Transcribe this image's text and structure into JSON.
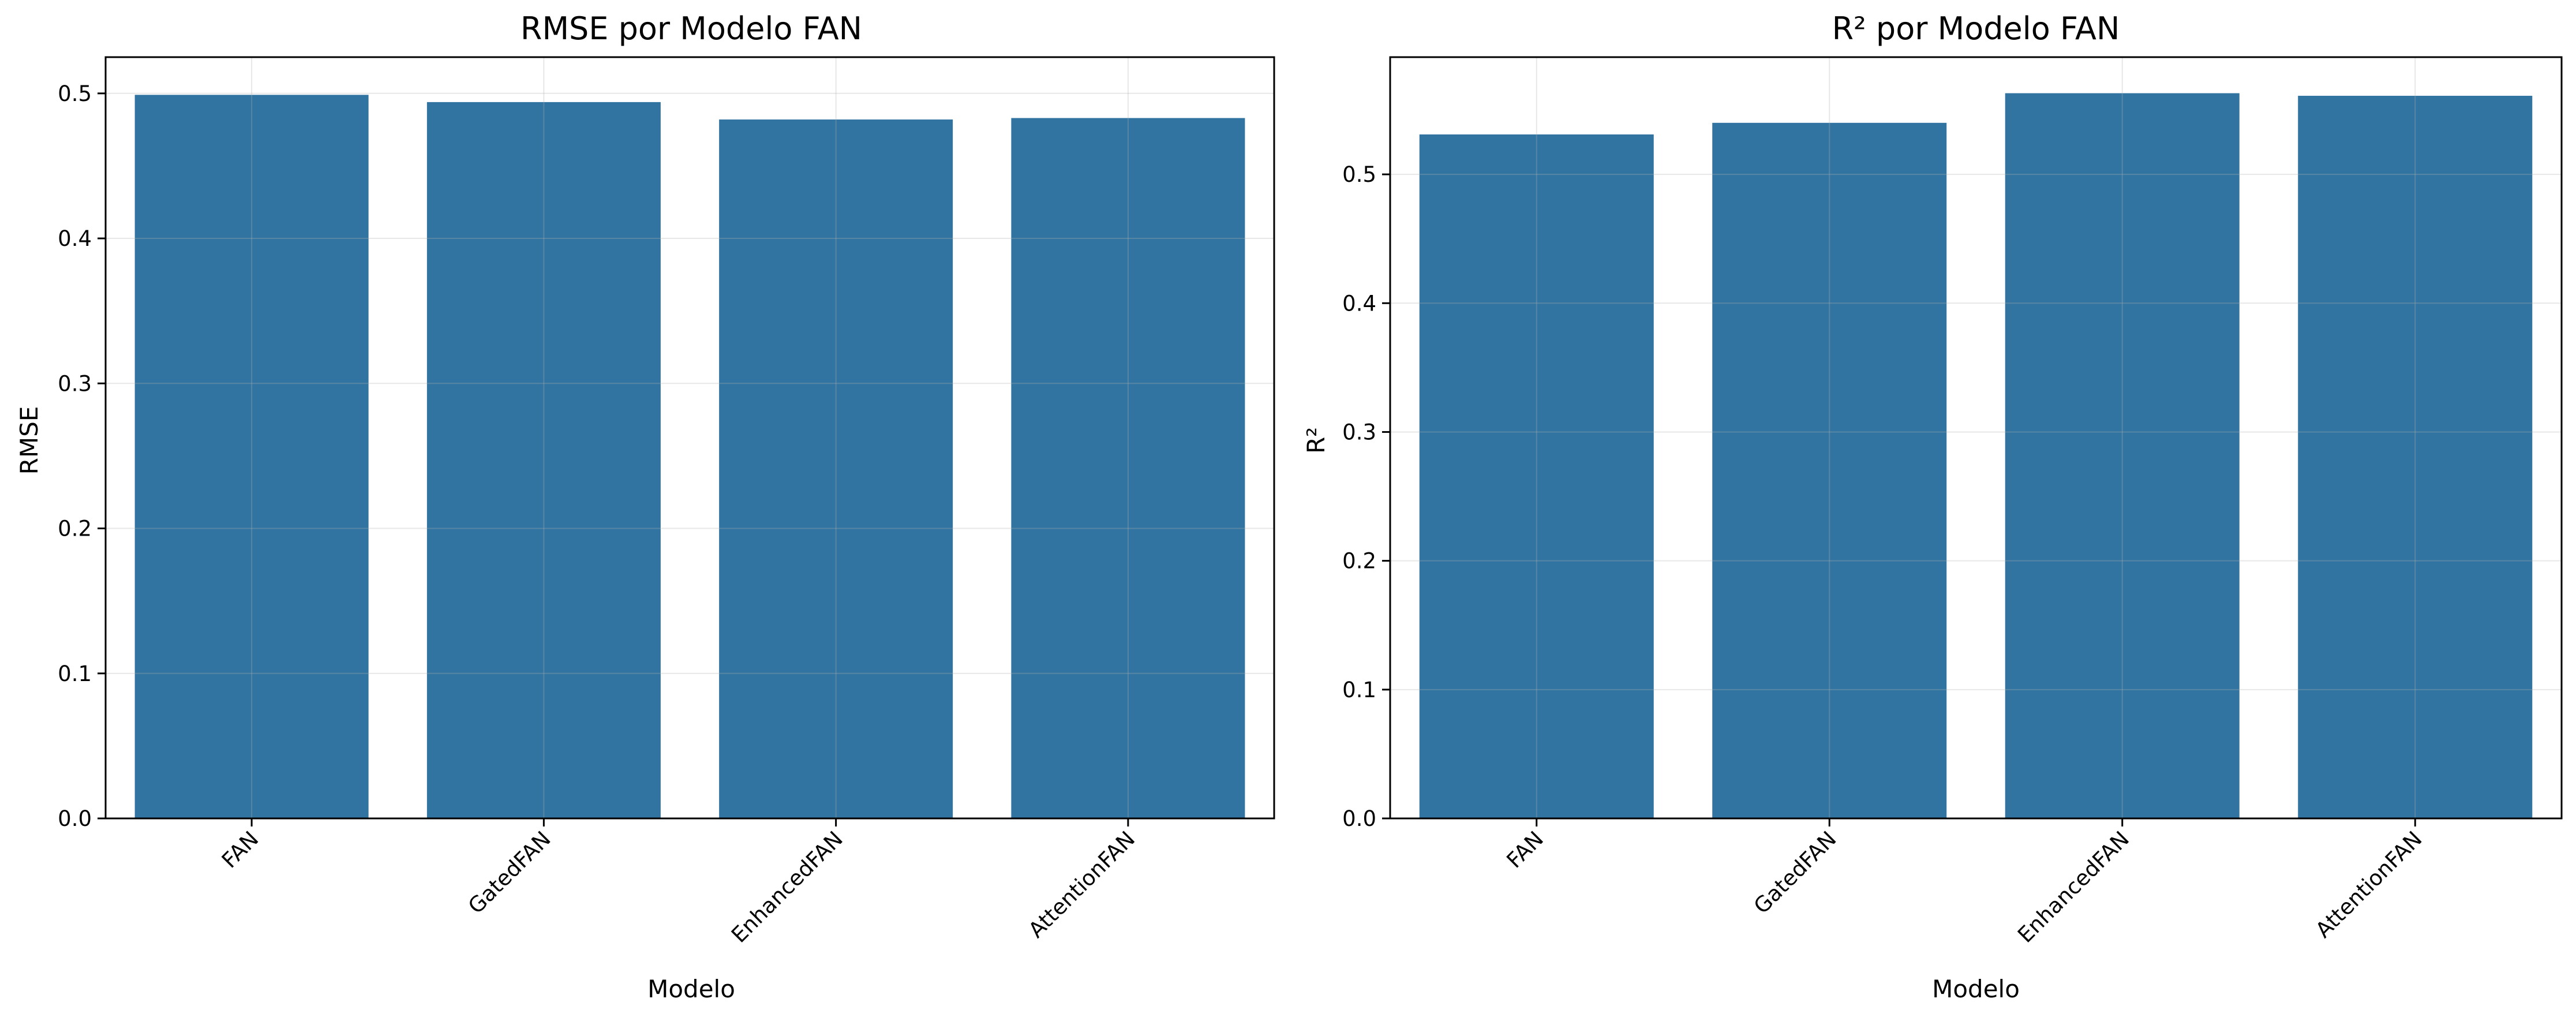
{
  "colors": {
    "bar": "#3274a1",
    "grid": "#b0b0b0",
    "axis": "#000000",
    "background": "#ffffff"
  },
  "chart_data": [
    {
      "type": "bar",
      "title": "RMSE por Modelo FAN",
      "xlabel": "Modelo",
      "ylabel": "RMSE",
      "categories": [
        "FAN",
        "GatedFAN",
        "EnhancedFAN",
        "AttentionFAN"
      ],
      "values": [
        0.499,
        0.494,
        0.482,
        0.483
      ],
      "ylim": [
        0,
        0.525
      ],
      "yticks": [
        0.0,
        0.1,
        0.2,
        0.3,
        0.4,
        0.5
      ],
      "ytick_labels": [
        "0.0",
        "0.1",
        "0.2",
        "0.3",
        "0.4",
        "0.5"
      ],
      "xtick_rotation": 45,
      "grid": true,
      "legend": "none"
    },
    {
      "type": "bar",
      "title": "R² por Modelo FAN",
      "xlabel": "Modelo",
      "ylabel": "R²",
      "categories": [
        "FAN",
        "GatedFAN",
        "EnhancedFAN",
        "AttentionFAN"
      ],
      "values": [
        0.531,
        0.54,
        0.563,
        0.561
      ],
      "ylim": [
        0,
        0.591
      ],
      "yticks": [
        0.0,
        0.1,
        0.2,
        0.3,
        0.4,
        0.5
      ],
      "ytick_labels": [
        "0.0",
        "0.1",
        "0.2",
        "0.3",
        "0.4",
        "0.5"
      ],
      "xtick_rotation": 45,
      "grid": true,
      "legend": "none"
    }
  ]
}
